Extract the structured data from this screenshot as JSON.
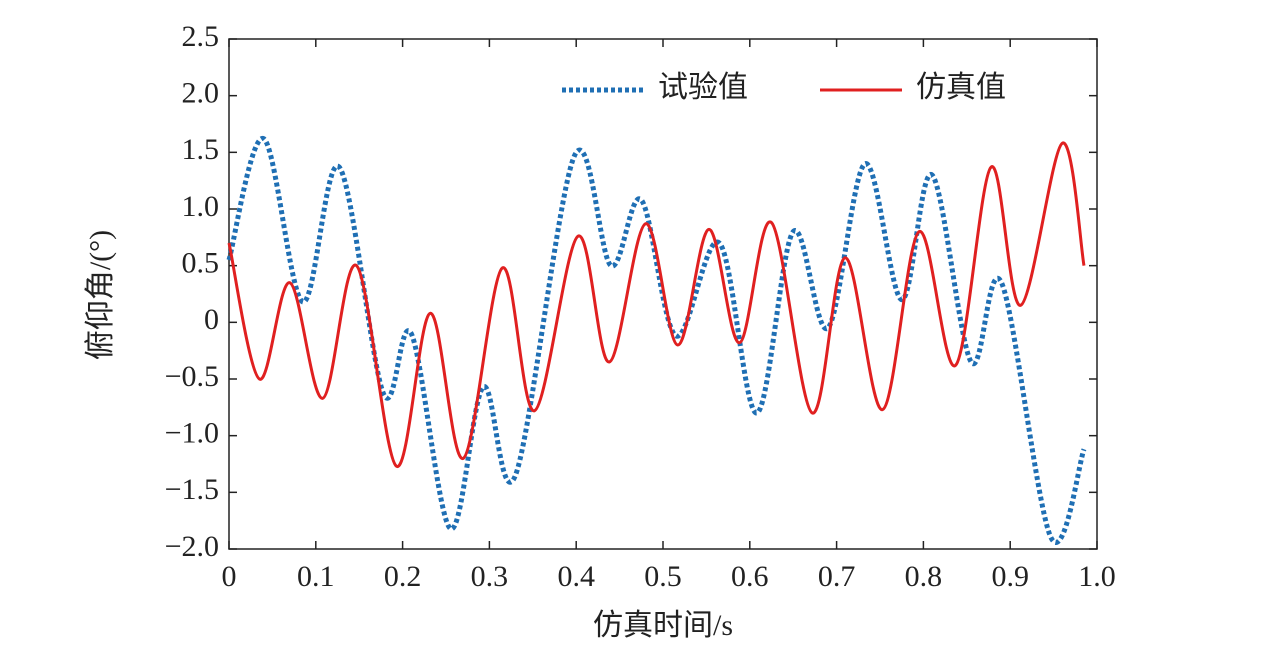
{
  "chart_data": {
    "type": "line",
    "xlabel": "仿真时间/s",
    "ylabel": "俯仰角/(°)",
    "xlim": [
      0,
      1.0
    ],
    "ylim": [
      -2.0,
      2.5
    ],
    "xticks": [
      0,
      0.1,
      0.2,
      0.3,
      0.4,
      0.5,
      0.6,
      0.7,
      0.8,
      0.9,
      {
        "value": 1.0,
        "label": "1.0"
      }
    ],
    "yticks": [
      {
        "value": -2.0,
        "label": "−2.0"
      },
      {
        "value": -1.5,
        "label": "−1.5"
      },
      {
        "value": -1.0,
        "label": "−1.0"
      },
      {
        "value": -0.5,
        "label": "−0.5"
      },
      0,
      0.5,
      {
        "value": 1.0,
        "label": "1.0"
      },
      1.5,
      {
        "value": 2.0,
        "label": "2.0"
      },
      2.5
    ],
    "legend": "upper right",
    "series": [
      {
        "name": "试验值",
        "color": "#1f6fb4",
        "style": "dotted",
        "x": [
          0,
          0.04,
          0.085,
          0.127,
          0.178,
          0.21,
          0.255,
          0.293,
          0.33,
          0.398,
          0.44,
          0.475,
          0.515,
          0.565,
          0.608,
          0.65,
          0.69,
          0.733,
          0.775,
          0.81,
          0.855,
          0.89,
          0.947,
          0.985
        ],
        "values": [
          0.55,
          1.62,
          0.18,
          1.37,
          -0.63,
          -0.1,
          -1.82,
          -0.57,
          -1.35,
          1.47,
          0.5,
          1.08,
          -0.12,
          0.7,
          -0.8,
          0.8,
          -0.05,
          1.4,
          0.2,
          1.3,
          -0.35,
          0.35,
          -1.9,
          -1.12
        ]
      },
      {
        "name": "仿真值",
        "color": "#e02020",
        "style": "solid",
        "x": [
          0,
          0.035,
          0.07,
          0.108,
          0.147,
          0.193,
          0.232,
          0.27,
          0.315,
          0.352,
          0.402,
          0.438,
          0.48,
          0.517,
          0.553,
          0.588,
          0.625,
          0.672,
          0.71,
          0.753,
          0.795,
          0.837,
          0.878,
          0.912,
          0.96,
          0.985
        ],
        "values": [
          0.7,
          -0.5,
          0.35,
          -0.67,
          0.5,
          -1.27,
          0.08,
          -1.2,
          0.48,
          -0.78,
          0.76,
          -0.35,
          0.87,
          -0.2,
          0.82,
          -0.18,
          0.88,
          -0.8,
          0.57,
          -0.77,
          0.8,
          -0.38,
          1.37,
          0.15,
          1.58,
          0.5
        ]
      }
    ]
  }
}
